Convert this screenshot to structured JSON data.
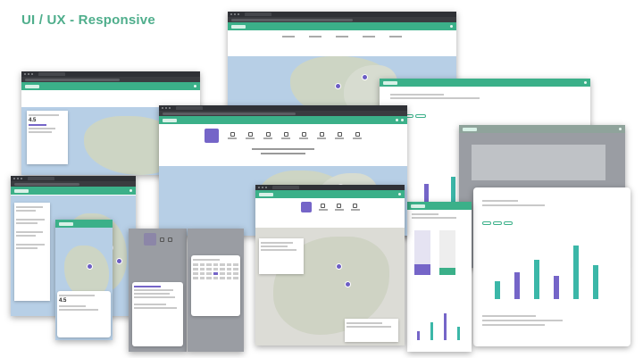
{
  "title": "UI / UX - Responsive",
  "colors": {
    "accent": "#3bb089",
    "title": "#4fae8c",
    "purple": "#7565c8",
    "chart_teal": "#3bb7a8",
    "map_sea": "#b7cfe6"
  },
  "icons": [
    "logo-icon",
    "map-pin-icon",
    "nav-icon"
  ]
}
